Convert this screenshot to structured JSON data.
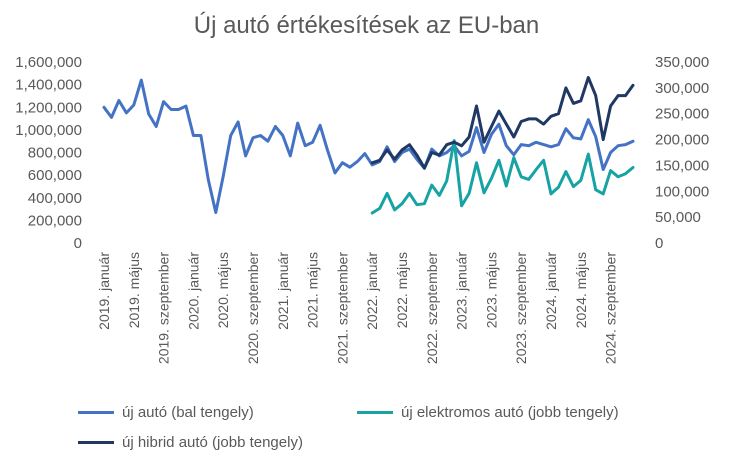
{
  "chart_data": {
    "type": "line",
    "title": "Új autó értékesítések az EU-ban",
    "x_labels": [
      "2019. január",
      "2019. május",
      "2019. szeptember",
      "2020. január",
      "2020. május",
      "2020. szeptember",
      "2021. január",
      "2021. május",
      "2021. szeptember",
      "2022. január",
      "2022. május",
      "2022. szeptember",
      "2023. január",
      "2023. május",
      "2023. szeptember",
      "2024. január",
      "2024. május",
      "2024. szeptember"
    ],
    "y_left": {
      "ticks": [
        "0",
        "200,000",
        "400,000",
        "600,000",
        "800,000",
        "1,000,000",
        "1,200,000",
        "1,400,000",
        "1,600,000"
      ],
      "range": [
        0,
        1600000
      ]
    },
    "y_right": {
      "ticks": [
        "0",
        "50,000",
        "100,000",
        "150,000",
        "200,000",
        "250,000",
        "300,000",
        "350,000"
      ],
      "range": [
        0,
        350000
      ]
    },
    "grid": false,
    "legend_position": "bottom",
    "series": [
      {
        "name": "új autó (bal tengely)",
        "axis": "left",
        "color": "#4472C4",
        "start_index": 0,
        "values": [
          1200000,
          1110000,
          1260000,
          1150000,
          1220000,
          1440000,
          1140000,
          1030000,
          1250000,
          1180000,
          1180000,
          1210000,
          950000,
          950000,
          560000,
          270000,
          590000,
          950000,
          1070000,
          770000,
          930000,
          950000,
          900000,
          1030000,
          950000,
          770000,
          1060000,
          860000,
          890000,
          1040000,
          820000,
          620000,
          710000,
          670000,
          720000,
          790000,
          690000,
          720000,
          850000,
          720000,
          800000,
          830000,
          740000,
          660000,
          830000,
          770000,
          800000,
          860000,
          770000,
          810000,
          1020000,
          800000,
          960000,
          1050000,
          860000,
          780000,
          870000,
          860000,
          890000,
          870000,
          850000,
          870000,
          1010000,
          930000,
          920000,
          1090000,
          940000,
          650000,
          800000,
          860000,
          870000,
          900000
        ]
      },
      {
        "name": "új elektromos autó (jobb tengely)",
        "axis": "right",
        "color": "#17A3A3",
        "start_index": 36,
        "values": [
          58000,
          67000,
          96000,
          64000,
          76000,
          96000,
          74000,
          76000,
          112000,
          92000,
          120000,
          198000,
          72000,
          96000,
          155000,
          97000,
          125000,
          160000,
          110000,
          165000,
          128000,
          123000,
          142000,
          160000,
          95000,
          108000,
          138000,
          109000,
          121000,
          172000,
          103000,
          95000,
          140000,
          128000,
          134000,
          146000
        ]
      },
      {
        "name": "új hibrid autó (jobb tengely)",
        "axis": "right",
        "color": "#1F3864",
        "start_index": 36,
        "values": [
          155000,
          160000,
          180000,
          162000,
          180000,
          190000,
          170000,
          145000,
          175000,
          170000,
          190000,
          195000,
          188000,
          205000,
          265000,
          195000,
          225000,
          255000,
          230000,
          205000,
          235000,
          240000,
          240000,
          230000,
          245000,
          250000,
          300000,
          270000,
          275000,
          320000,
          285000,
          200000,
          265000,
          285000,
          285000,
          305000
        ]
      }
    ]
  }
}
